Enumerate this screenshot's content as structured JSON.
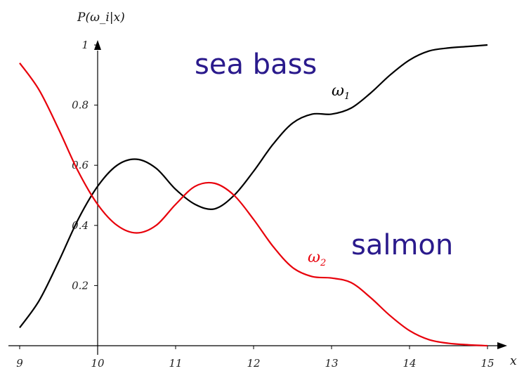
{
  "chart_data": {
    "type": "line",
    "title": "",
    "ylabel": "P(ω_i|x)",
    "xlabel": "x",
    "xlim": [
      9,
      15
    ],
    "ylim": [
      0,
      1
    ],
    "x_axis_crossing_y": 10,
    "xticks": [
      "9",
      "10",
      "11",
      "12",
      "13",
      "14",
      "15"
    ],
    "yticks": [
      "0.2",
      "0.4",
      "0.6",
      "0.8",
      "1"
    ],
    "grid": false,
    "legend": "none",
    "annotations": [
      {
        "text": "sea bass",
        "color": "#2a1a8c"
      },
      {
        "text": "salmon",
        "color": "#2a1a8c"
      }
    ],
    "series": [
      {
        "name": "ω1",
        "name_main": "ω",
        "name_sub": "1",
        "color": "#000000",
        "x": [
          9.0,
          9.25,
          9.5,
          9.75,
          10.0,
          10.25,
          10.5,
          10.75,
          11.0,
          11.25,
          11.5,
          11.75,
          12.0,
          12.25,
          12.5,
          12.75,
          13.0,
          13.25,
          13.5,
          13.75,
          14.0,
          14.25,
          14.5,
          14.75,
          15.0
        ],
        "y": [
          0.06,
          0.15,
          0.28,
          0.42,
          0.53,
          0.6,
          0.62,
          0.59,
          0.52,
          0.47,
          0.455,
          0.5,
          0.58,
          0.67,
          0.74,
          0.77,
          0.77,
          0.79,
          0.84,
          0.9,
          0.95,
          0.98,
          0.99,
          0.995,
          1.0
        ]
      },
      {
        "name": "ω2",
        "name_main": "ω",
        "name_sub": "2",
        "color": "#e8000b",
        "x": [
          9.0,
          9.25,
          9.5,
          9.75,
          10.0,
          10.25,
          10.5,
          10.75,
          11.0,
          11.25,
          11.5,
          11.75,
          12.0,
          12.25,
          12.5,
          12.75,
          13.0,
          13.25,
          13.5,
          13.75,
          14.0,
          14.25,
          14.5,
          14.75,
          15.0
        ],
        "y": [
          0.94,
          0.85,
          0.72,
          0.58,
          0.47,
          0.4,
          0.375,
          0.4,
          0.47,
          0.53,
          0.54,
          0.5,
          0.42,
          0.33,
          0.26,
          0.23,
          0.225,
          0.21,
          0.16,
          0.1,
          0.05,
          0.02,
          0.008,
          0.003,
          0.0
        ]
      }
    ]
  }
}
